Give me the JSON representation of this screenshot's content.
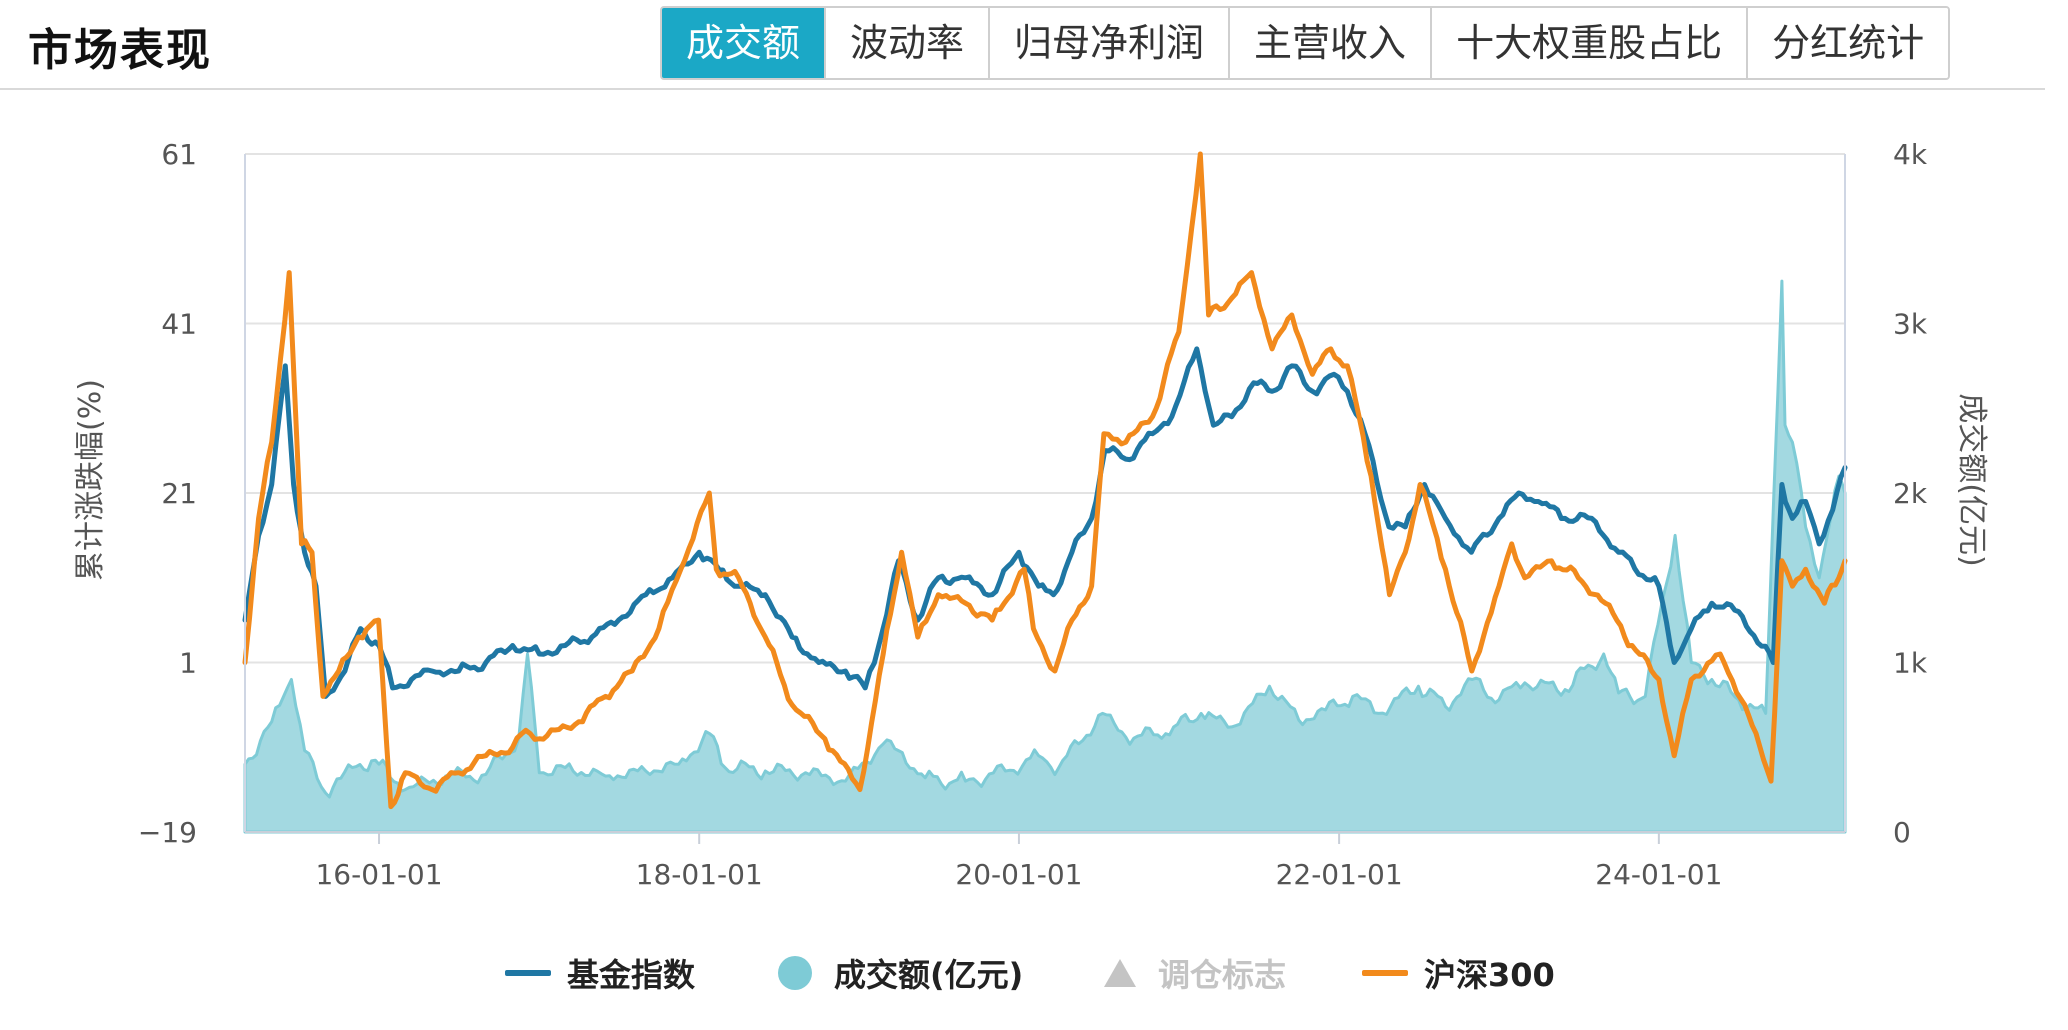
{
  "header": {
    "title": "市场表现",
    "tabs": [
      {
        "label": "成交额",
        "active": true
      },
      {
        "label": "波动率",
        "active": false
      },
      {
        "label": "归母净利润",
        "active": false
      },
      {
        "label": "主营收入",
        "active": false
      },
      {
        "label": "十大权重股占比",
        "active": false
      },
      {
        "label": "分红统计",
        "active": false
      }
    ],
    "accent_color": "#1ba8c6"
  },
  "legend": {
    "items": [
      {
        "label": "基金指数",
        "color": "#1f77a4",
        "icon": "line"
      },
      {
        "label": "成交额(亿元)",
        "color": "#7ecbd6",
        "icon": "circle"
      },
      {
        "label": "调仓标志",
        "color": "#c4c4c4",
        "icon": "triangle"
      },
      {
        "label": "沪深300",
        "color": "#f28a1c",
        "icon": "line"
      }
    ]
  },
  "chart_data": {
    "type": "line",
    "x_range": [
      "2015-03-01",
      "2025-03-01"
    ],
    "x_ticks": [
      "16-01-01",
      "18-01-01",
      "20-01-01",
      "22-01-01",
      "24-01-01"
    ],
    "y_left": {
      "label": "累计涨跌幅(%)",
      "range": [
        -19,
        61
      ],
      "ticks": [
        "61",
        "41",
        "21",
        "1",
        "−19"
      ]
    },
    "y_right": {
      "label": "成交额(亿元)",
      "range": [
        0,
        4000
      ],
      "ticks": [
        "4k",
        "3k",
        "2k",
        "1k",
        "0"
      ]
    },
    "grid": true,
    "legend_position": "bottom",
    "series": [
      {
        "name": "基金指数",
        "color": "#1f77a4",
        "axis": "left",
        "type": "line",
        "points": [
          [
            "2015-03-01",
            6
          ],
          [
            "2015-04-01",
            16
          ],
          [
            "2015-05-01",
            22
          ],
          [
            "2015-06-01",
            36
          ],
          [
            "2015-06-20",
            22
          ],
          [
            "2015-07-15",
            14
          ],
          [
            "2015-08-10",
            10
          ],
          [
            "2015-09-01",
            -3
          ],
          [
            "2015-10-15",
            0
          ],
          [
            "2015-11-20",
            5
          ],
          [
            "2016-01-01",
            3
          ],
          [
            "2016-02-01",
            -2
          ],
          [
            "2016-03-15",
            -1
          ],
          [
            "2016-05-01",
            0
          ],
          [
            "2016-07-01",
            0
          ],
          [
            "2016-09-01",
            1
          ],
          [
            "2016-11-01",
            3
          ],
          [
            "2017-01-01",
            2
          ],
          [
            "2017-03-01",
            3
          ],
          [
            "2017-05-01",
            4
          ],
          [
            "2017-07-01",
            6
          ],
          [
            "2017-09-01",
            9
          ],
          [
            "2017-11-01",
            11
          ],
          [
            "2018-01-01",
            14
          ],
          [
            "2018-02-15",
            12
          ],
          [
            "2018-04-01",
            10
          ],
          [
            "2018-06-01",
            9
          ],
          [
            "2018-08-01",
            4
          ],
          [
            "2018-10-01",
            1
          ],
          [
            "2018-12-01",
            0
          ],
          [
            "2019-01-15",
            -2
          ],
          [
            "2019-02-15",
            3
          ],
          [
            "2019-04-01",
            13
          ],
          [
            "2019-05-15",
            6
          ],
          [
            "2019-07-01",
            11
          ],
          [
            "2019-09-01",
            11
          ],
          [
            "2019-11-01",
            9
          ],
          [
            "2020-01-01",
            14
          ],
          [
            "2020-02-15",
            10
          ],
          [
            "2020-03-20",
            9
          ],
          [
            "2020-05-01",
            14
          ],
          [
            "2020-06-15",
            18
          ],
          [
            "2020-07-15",
            26
          ],
          [
            "2020-09-01",
            25
          ],
          [
            "2020-11-01",
            28
          ],
          [
            "2020-12-15",
            30
          ],
          [
            "2021-02-10",
            38
          ],
          [
            "2021-03-20",
            29
          ],
          [
            "2021-05-01",
            30
          ],
          [
            "2021-06-20",
            34
          ],
          [
            "2021-08-01",
            33
          ],
          [
            "2021-09-15",
            36
          ],
          [
            "2021-11-01",
            33
          ],
          [
            "2021-12-20",
            35
          ],
          [
            "2022-01-20",
            33
          ],
          [
            "2022-03-01",
            28
          ],
          [
            "2022-04-25",
            17
          ],
          [
            "2022-06-01",
            17
          ],
          [
            "2022-07-15",
            22
          ],
          [
            "2022-09-01",
            18
          ],
          [
            "2022-10-30",
            14
          ],
          [
            "2023-01-01",
            18
          ],
          [
            "2023-02-15",
            21
          ],
          [
            "2023-04-01",
            20
          ],
          [
            "2023-06-01",
            18
          ],
          [
            "2023-08-01",
            18
          ],
          [
            "2023-10-01",
            14
          ],
          [
            "2024-01-01",
            10
          ],
          [
            "2024-02-05",
            1
          ],
          [
            "2024-03-15",
            5
          ],
          [
            "2024-05-01",
            8
          ],
          [
            "2024-07-01",
            7
          ],
          [
            "2024-09-18",
            1
          ],
          [
            "2024-10-08",
            22
          ],
          [
            "2024-11-01",
            18
          ],
          [
            "2024-12-01",
            20
          ],
          [
            "2025-01-01",
            15
          ],
          [
            "2025-02-01",
            19
          ],
          [
            "2025-03-01",
            24
          ]
        ]
      },
      {
        "name": "沪深300",
        "color": "#f28a1c",
        "axis": "left",
        "type": "line",
        "points": [
          [
            "2015-03-01",
            1
          ],
          [
            "2015-04-01",
            18
          ],
          [
            "2015-05-01",
            27
          ],
          [
            "2015-06-10",
            47
          ],
          [
            "2015-07-08",
            15
          ],
          [
            "2015-08-01",
            14
          ],
          [
            "2015-08-26",
            -3
          ],
          [
            "2015-10-01",
            0
          ],
          [
            "2015-11-15",
            4
          ],
          [
            "2015-12-31",
            6
          ],
          [
            "2016-01-28",
            -16
          ],
          [
            "2016-03-01",
            -12
          ],
          [
            "2016-05-01",
            -14
          ],
          [
            "2016-07-01",
            -12
          ],
          [
            "2016-09-01",
            -10
          ],
          [
            "2016-11-01",
            -9
          ],
          [
            "2016-12-01",
            -7
          ],
          [
            "2017-01-01",
            -8
          ],
          [
            "2017-04-01",
            -6
          ],
          [
            "2017-06-01",
            -3
          ],
          [
            "2017-08-01",
            0
          ],
          [
            "2017-10-01",
            5
          ],
          [
            "2017-11-20",
            12
          ],
          [
            "2018-01-24",
            21
          ],
          [
            "2018-02-09",
            12
          ],
          [
            "2018-04-01",
            11
          ],
          [
            "2018-06-01",
            4
          ],
          [
            "2018-08-01",
            -4
          ],
          [
            "2018-10-15",
            -8
          ],
          [
            "2019-01-03",
            -14
          ],
          [
            "2019-02-25",
            2
          ],
          [
            "2019-04-08",
            14
          ],
          [
            "2019-05-15",
            4
          ],
          [
            "2019-07-01",
            9
          ],
          [
            "2019-09-01",
            8
          ],
          [
            "2019-11-01",
            6
          ],
          [
            "2020-01-13",
            12
          ],
          [
            "2020-02-03",
            5
          ],
          [
            "2020-03-23",
            0
          ],
          [
            "2020-05-01",
            6
          ],
          [
            "2020-06-15",
            10
          ],
          [
            "2020-07-13",
            28
          ],
          [
            "2020-09-01",
            27
          ],
          [
            "2020-11-01",
            30
          ],
          [
            "2020-12-31",
            40
          ],
          [
            "2021-02-18",
            61
          ],
          [
            "2021-03-09",
            42
          ],
          [
            "2021-05-01",
            44
          ],
          [
            "2021-06-15",
            47
          ],
          [
            "2021-08-01",
            38
          ],
          [
            "2021-09-15",
            42
          ],
          [
            "2021-11-01",
            35
          ],
          [
            "2021-12-13",
            38
          ],
          [
            "2022-01-20",
            36
          ],
          [
            "2022-03-15",
            23
          ],
          [
            "2022-04-26",
            9
          ],
          [
            "2022-06-01",
            14
          ],
          [
            "2022-07-05",
            22
          ],
          [
            "2022-09-01",
            12
          ],
          [
            "2022-10-31",
            0
          ],
          [
            "2023-01-01",
            10
          ],
          [
            "2023-01-30",
            15
          ],
          [
            "2023-03-01",
            11
          ],
          [
            "2023-05-01",
            13
          ],
          [
            "2023-07-01",
            11
          ],
          [
            "2023-09-01",
            8
          ],
          [
            "2023-11-01",
            3
          ],
          [
            "2024-01-01",
            -1
          ],
          [
            "2024-02-05",
            -10
          ],
          [
            "2024-03-15",
            -1
          ],
          [
            "2024-05-20",
            2
          ],
          [
            "2024-07-15",
            -4
          ],
          [
            "2024-09-13",
            -13
          ],
          [
            "2024-10-08",
            13
          ],
          [
            "2024-11-01",
            10
          ],
          [
            "2024-12-01",
            12
          ],
          [
            "2025-01-13",
            8
          ],
          [
            "2025-02-15",
            11
          ],
          [
            "2025-03-01",
            13
          ]
        ]
      },
      {
        "name": "成交额(亿元)",
        "color": "#7ecbd6",
        "axis": "right",
        "type": "area",
        "points": [
          [
            "2015-03-01",
            400
          ],
          [
            "2015-05-01",
            650
          ],
          [
            "2015-06-15",
            900
          ],
          [
            "2015-07-15",
            480
          ],
          [
            "2015-09-01",
            230
          ],
          [
            "2015-11-01",
            380
          ],
          [
            "2015-12-15",
            420
          ],
          [
            "2016-01-01",
            400
          ],
          [
            "2016-03-01",
            250
          ],
          [
            "2016-06-01",
            330
          ],
          [
            "2016-09-01",
            340
          ],
          [
            "2016-11-15",
            550
          ],
          [
            "2016-12-05",
            1050
          ],
          [
            "2017-01-01",
            350
          ],
          [
            "2017-03-01",
            380
          ],
          [
            "2017-06-01",
            330
          ],
          [
            "2017-09-01",
            360
          ],
          [
            "2017-11-15",
            400
          ],
          [
            "2018-01-25",
            580
          ],
          [
            "2018-03-01",
            380
          ],
          [
            "2018-06-01",
            360
          ],
          [
            "2018-09-01",
            350
          ],
          [
            "2018-12-01",
            300
          ],
          [
            "2019-02-25",
            520
          ],
          [
            "2019-04-01",
            480
          ],
          [
            "2019-06-01",
            320
          ],
          [
            "2019-09-01",
            300
          ],
          [
            "2019-12-01",
            360
          ],
          [
            "2020-02-15",
            450
          ],
          [
            "2020-04-01",
            380
          ],
          [
            "2020-07-10",
            700
          ],
          [
            "2020-09-01",
            560
          ],
          [
            "2020-12-01",
            580
          ],
          [
            "2021-02-20",
            700
          ],
          [
            "2021-05-01",
            620
          ],
          [
            "2021-07-26",
            860
          ],
          [
            "2021-10-01",
            660
          ],
          [
            "2021-12-01",
            720
          ],
          [
            "2022-02-01",
            800
          ],
          [
            "2022-04-01",
            700
          ],
          [
            "2022-07-01",
            860
          ],
          [
            "2022-09-01",
            740
          ],
          [
            "2022-11-01",
            900
          ],
          [
            "2023-01-01",
            780
          ],
          [
            "2023-03-01",
            880
          ],
          [
            "2023-06-01",
            840
          ],
          [
            "2023-08-28",
            1050
          ],
          [
            "2023-10-01",
            820
          ],
          [
            "2023-12-01",
            800
          ],
          [
            "2024-02-07",
            1750
          ],
          [
            "2024-03-15",
            1000
          ],
          [
            "2024-05-01",
            900
          ],
          [
            "2024-07-01",
            780
          ],
          [
            "2024-09-01",
            700
          ],
          [
            "2024-10-08",
            3250
          ],
          [
            "2024-10-15",
            2400
          ],
          [
            "2024-11-01",
            2300
          ],
          [
            "2024-12-01",
            1800
          ],
          [
            "2025-01-01",
            1500
          ],
          [
            "2025-02-15",
            2100
          ],
          [
            "2025-03-01",
            2000
          ]
        ]
      }
    ]
  }
}
